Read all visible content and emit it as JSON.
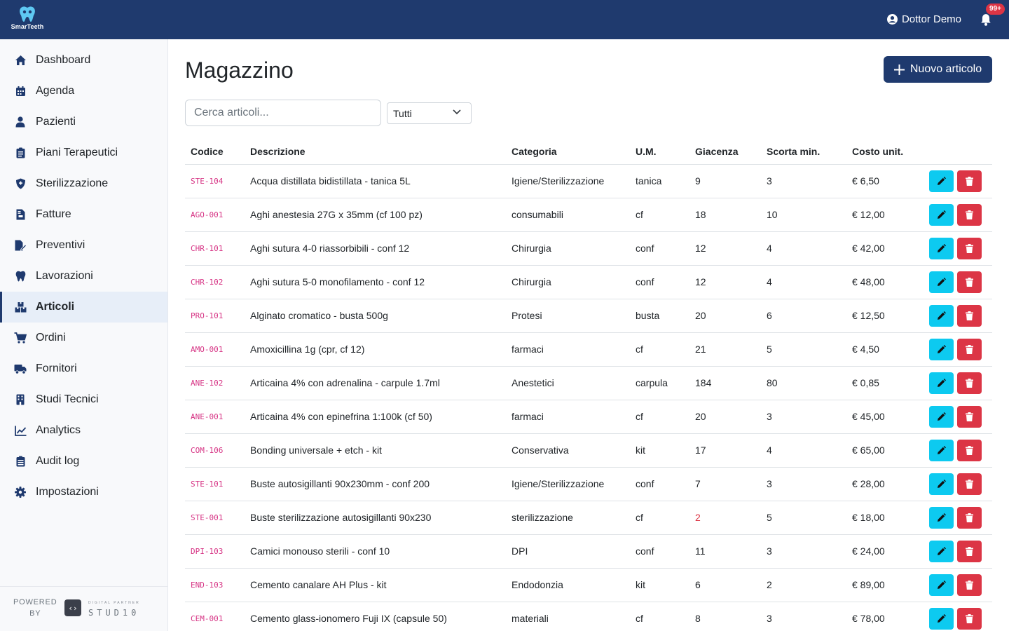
{
  "app": {
    "name": "SmarTeeth"
  },
  "header": {
    "user_name": "Dottor Demo",
    "notifications_badge": "99+"
  },
  "sidebar": {
    "items": [
      {
        "label": "Dashboard",
        "icon": "home-icon"
      },
      {
        "label": "Agenda",
        "icon": "calendar-icon"
      },
      {
        "label": "Pazienti",
        "icon": "user-icon"
      },
      {
        "label": "Piani Terapeutici",
        "icon": "clipboard-icon"
      },
      {
        "label": "Sterilizzazione",
        "icon": "shield-icon"
      },
      {
        "label": "Fatture",
        "icon": "file-invoice-icon"
      },
      {
        "label": "Preventivi",
        "icon": "file-edit-icon"
      },
      {
        "label": "Lavorazioni",
        "icon": "tooth-icon"
      },
      {
        "label": "Articoli",
        "icon": "boxes-icon"
      },
      {
        "label": "Ordini",
        "icon": "cart-icon"
      },
      {
        "label": "Fornitori",
        "icon": "truck-icon"
      },
      {
        "label": "Studi Tecnici",
        "icon": "building-icon"
      },
      {
        "label": "Analytics",
        "icon": "chart-line-icon"
      },
      {
        "label": "Audit log",
        "icon": "clipboard-list-icon"
      },
      {
        "label": "Impostazioni",
        "icon": "gear-icon"
      }
    ],
    "active": "Articoli",
    "powered_line1": "POWERED",
    "powered_line2": "BY",
    "partner_small": "DIGITAL PARTNER",
    "partner_name": "STUD10"
  },
  "main": {
    "title": "Magazzino",
    "new_button_label": "Nuovo articolo",
    "search_placeholder": "Cerca articoli...",
    "filter_selected": "Tutti"
  },
  "table": {
    "columns": [
      "Codice",
      "Descrizione",
      "Categoria",
      "U.M.",
      "Giacenza",
      "Scorta min.",
      "Costo unit."
    ],
    "rows": [
      {
        "code": "STE-104",
        "desc": "Acqua distillata bidistillata - tanica 5L",
        "cat": "Igiene/Sterilizzazione",
        "um": "tanica",
        "stock": "9",
        "min": "3",
        "cost": "€ 6,50",
        "low": false
      },
      {
        "code": "AGO-001",
        "desc": "Aghi anestesia 27G x 35mm (cf 100 pz)",
        "cat": "consumabili",
        "um": "cf",
        "stock": "18",
        "min": "10",
        "cost": "€ 12,00",
        "low": false
      },
      {
        "code": "CHR-101",
        "desc": "Aghi sutura 4-0 riassorbibili - conf 12",
        "cat": "Chirurgia",
        "um": "conf",
        "stock": "12",
        "min": "4",
        "cost": "€ 42,00",
        "low": false
      },
      {
        "code": "CHR-102",
        "desc": "Aghi sutura 5-0 monofilamento - conf 12",
        "cat": "Chirurgia",
        "um": "conf",
        "stock": "12",
        "min": "4",
        "cost": "€ 48,00",
        "low": false
      },
      {
        "code": "PRO-101",
        "desc": "Alginato cromatico - busta 500g",
        "cat": "Protesi",
        "um": "busta",
        "stock": "20",
        "min": "6",
        "cost": "€ 12,50",
        "low": false
      },
      {
        "code": "AMO-001",
        "desc": "Amoxicillina 1g (cpr, cf 12)",
        "cat": "farmaci",
        "um": "cf",
        "stock": "21",
        "min": "5",
        "cost": "€ 4,50",
        "low": false
      },
      {
        "code": "ANE-102",
        "desc": "Articaina 4% con adrenalina - carpule 1.7ml",
        "cat": "Anestetici",
        "um": "carpula",
        "stock": "184",
        "min": "80",
        "cost": "€ 0,85",
        "low": false
      },
      {
        "code": "ANE-001",
        "desc": "Articaina 4% con epinefrina 1:100k (cf 50)",
        "cat": "farmaci",
        "um": "cf",
        "stock": "20",
        "min": "3",
        "cost": "€ 45,00",
        "low": false
      },
      {
        "code": "COM-106",
        "desc": "Bonding universale + etch - kit",
        "cat": "Conservativa",
        "um": "kit",
        "stock": "17",
        "min": "4",
        "cost": "€ 65,00",
        "low": false
      },
      {
        "code": "STE-101",
        "desc": "Buste autosigillanti 90x230mm - conf 200",
        "cat": "Igiene/Sterilizzazione",
        "um": "conf",
        "stock": "7",
        "min": "3",
        "cost": "€ 28,00",
        "low": false
      },
      {
        "code": "STE-001",
        "desc": "Buste sterilizzazione autosigillanti 90x230",
        "cat": "sterilizzazione",
        "um": "cf",
        "stock": "2",
        "min": "5",
        "cost": "€ 18,00",
        "low": true
      },
      {
        "code": "DPI-103",
        "desc": "Camici monouso sterili - conf 10",
        "cat": "DPI",
        "um": "conf",
        "stock": "11",
        "min": "3",
        "cost": "€ 24,00",
        "low": false
      },
      {
        "code": "END-103",
        "desc": "Cemento canalare AH Plus - kit",
        "cat": "Endodonzia",
        "um": "kit",
        "stock": "6",
        "min": "2",
        "cost": "€ 89,00",
        "low": false
      },
      {
        "code": "CEM-001",
        "desc": "Cemento glass-ionomero Fuji IX (capsule 50)",
        "cat": "materiali",
        "um": "cf",
        "stock": "8",
        "min": "3",
        "cost": "€ 78,00",
        "low": false
      }
    ]
  },
  "colors": {
    "header": "#1f3a6e",
    "edit": "#0dcaf0",
    "delete": "#dc3545",
    "code": "#d63384"
  }
}
